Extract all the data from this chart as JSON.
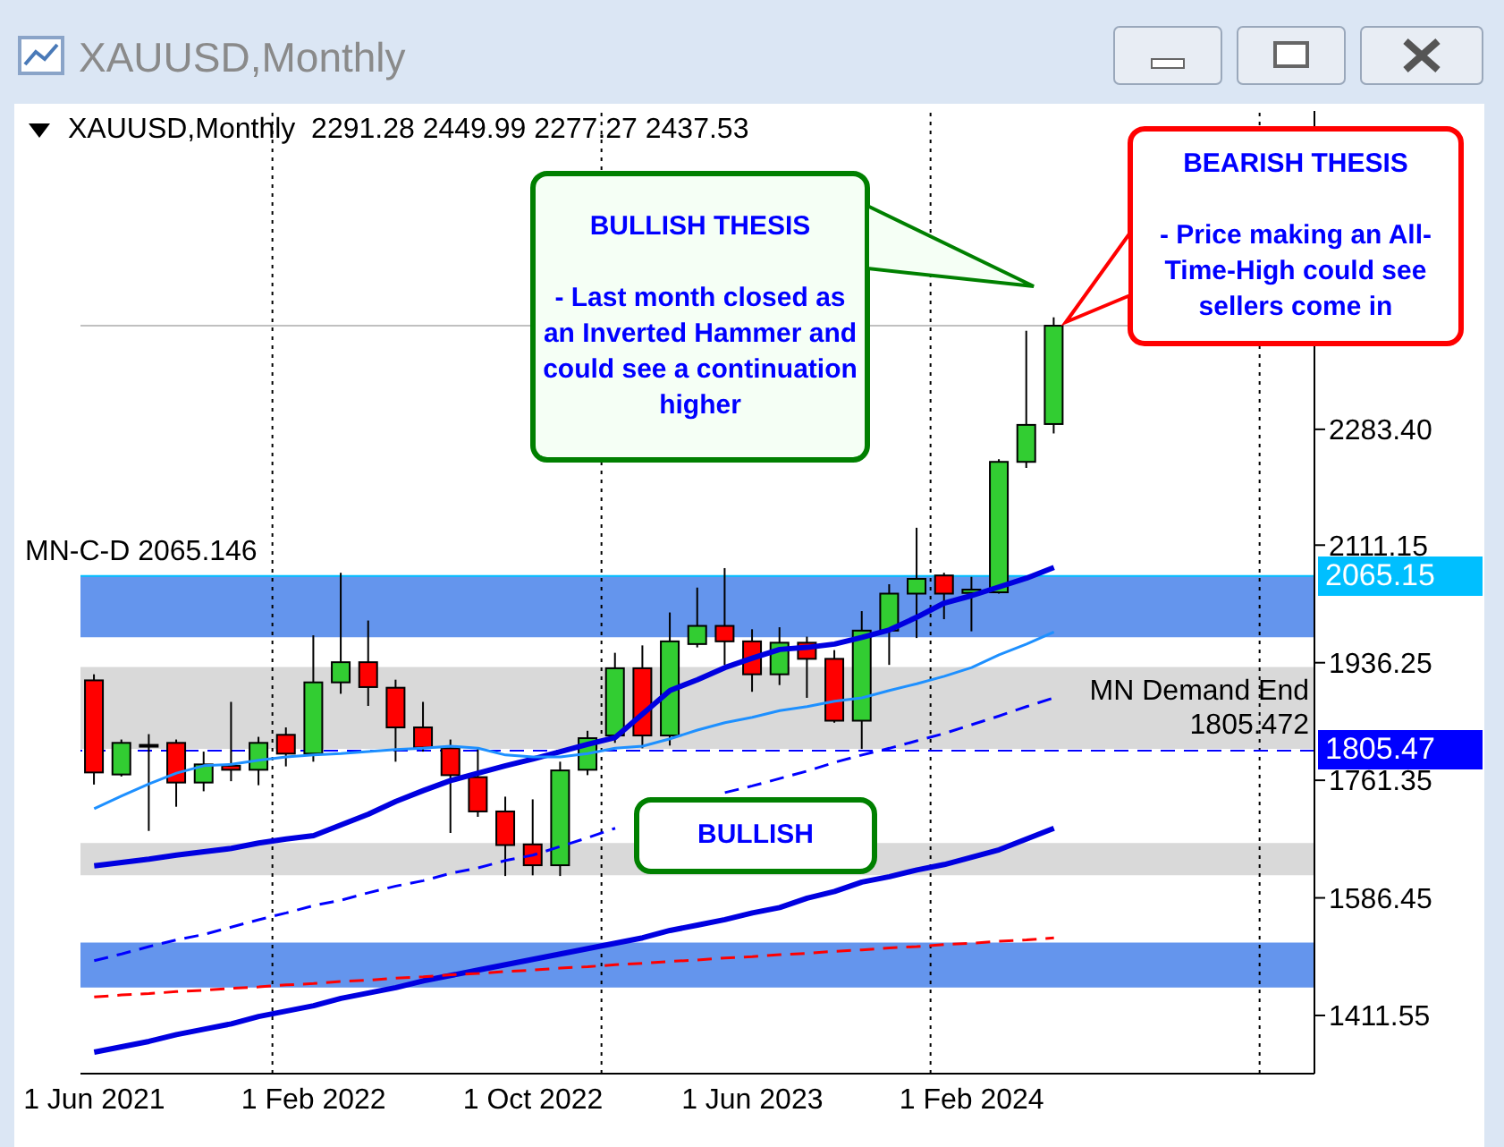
{
  "chart_data": {
    "type": "candlestick",
    "title": "XAUUSD,Monthly",
    "subtitle": "XAUUSD,Monthly  2291.28 2449.99 2277.27 2437.53",
    "categories": [
      "1 Jun 2021",
      null,
      null,
      null,
      null,
      null,
      null,
      null,
      "1 Feb 2022",
      null,
      null,
      null,
      null,
      null,
      null,
      null,
      "1 Oct 2022",
      null,
      null,
      null,
      null,
      null,
      null,
      null,
      "1 Jun 2023",
      null,
      null,
      null,
      null,
      null,
      null,
      null,
      "1 Feb 2024",
      null,
      null,
      null,
      null,
      null,
      null,
      null,
      null,
      null,
      null,
      null,
      null
    ],
    "ohlc": [
      [
        1910,
        1919,
        1755,
        1773
      ],
      [
        1770,
        1822,
        1767,
        1817
      ],
      [
        1813,
        1830,
        1686,
        1814
      ],
      [
        1817,
        1822,
        1722,
        1758
      ],
      [
        1758,
        1804,
        1745,
        1785
      ],
      [
        1783,
        1878,
        1760,
        1777
      ],
      [
        1777,
        1826,
        1754,
        1817
      ],
      [
        1829,
        1840,
        1782,
        1801
      ],
      [
        1801,
        1977,
        1789,
        1907
      ],
      [
        1907,
        2070,
        1890,
        1937
      ],
      [
        1937,
        1999,
        1872,
        1900
      ],
      [
        1899,
        1911,
        1789,
        1840
      ],
      [
        1840,
        1878,
        1804,
        1810
      ],
      [
        1809,
        1822,
        1683,
        1769
      ],
      [
        1766,
        1810,
        1707,
        1715
      ],
      [
        1715,
        1737,
        1619,
        1665
      ],
      [
        1666,
        1733,
        1620,
        1635
      ],
      [
        1635,
        1789,
        1619,
        1776
      ],
      [
        1777,
        1835,
        1769,
        1824
      ],
      [
        1828,
        1951,
        1817,
        1928
      ],
      [
        1928,
        1962,
        1809,
        1828
      ],
      [
        1828,
        2011,
        1813,
        1968
      ],
      [
        1964,
        2048,
        1959,
        1991
      ],
      [
        1991,
        2077,
        1933,
        1968
      ],
      [
        1968,
        1986,
        1893,
        1919
      ],
      [
        1919,
        1989,
        1903,
        1966
      ],
      [
        1966,
        1975,
        1884,
        1942
      ],
      [
        1942,
        1955,
        1847,
        1850
      ],
      [
        1850,
        2013,
        1808,
        1984
      ],
      [
        1984,
        2053,
        1933,
        2039
      ],
      [
        2039,
        2137,
        1973,
        2061
      ],
      [
        2066,
        2070,
        2001,
        2039
      ],
      [
        2040,
        2064,
        1983,
        2045
      ],
      [
        2041,
        2239,
        2039,
        2235
      ],
      [
        2235,
        2430,
        2226,
        2290
      ],
      [
        2291.28,
        2449.99,
        2277.27,
        2437.53
      ],
      null,
      null,
      null,
      null,
      null,
      null,
      null,
      null,
      null
    ],
    "colors": [
      "#ff0000",
      "#32cd32",
      "#32cd32",
      "#ff0000",
      "#32cd32",
      "#ff0000",
      "#32cd32",
      "#ff0000",
      "#32cd32",
      "#32cd32",
      "#ff0000",
      "#ff0000",
      "#ff0000",
      "#ff0000",
      "#ff0000",
      "#ff0000",
      "#ff0000",
      "#32cd32",
      "#32cd32",
      "#32cd32",
      "#ff0000",
      "#32cd32",
      "#32cd32",
      "#ff0000",
      "#ff0000",
      "#32cd32",
      "#ff0000",
      "#ff0000",
      "#32cd32",
      "#32cd32",
      "#32cd32",
      "#ff0000",
      "#32cd32",
      "#32cd32",
      "#32cd32",
      "#32cd32",
      null,
      null,
      null,
      null,
      null,
      null,
      null,
      null,
      null
    ],
    "series": [
      {
        "type": "line",
        "color": "#0000e0",
        "line_style": "solid",
        "values": [
          1634,
          1639,
          1644,
          1650,
          1655,
          1660,
          1668,
          1674,
          1679,
          1695,
          1711,
          1730,
          1746,
          1761,
          1772,
          1783,
          1793,
          1804,
          1815,
          1825,
          1860,
          1895,
          1911,
          1929,
          1943,
          1956,
          1959,
          1964,
          1974,
          1985,
          2004,
          2025,
          2036,
          2049,
          2062,
          2078,
          null,
          null,
          null,
          null,
          null,
          null,
          null,
          null,
          null
        ]
      },
      {
        "type": "line",
        "color": "#1e90ff",
        "line_style": "solid",
        "values": [
          1719,
          1738,
          1756,
          1772,
          1783,
          1785,
          1791,
          1796,
          1799,
          1801,
          1804,
          1807,
          1809,
          1812,
          1809,
          1799,
          1796,
          1796,
          1801,
          1809,
          1812,
          1823,
          1836,
          1847,
          1855,
          1865,
          1871,
          1879,
          1884,
          1895,
          1905,
          1916,
          1929,
          1948,
          1964,
          1982,
          null,
          null,
          null,
          null,
          null,
          null,
          null,
          null,
          null
        ]
      },
      {
        "type": "line",
        "color": "#0000ff",
        "line_style": "dashed",
        "values": [
          1493,
          1503,
          1514,
          1524,
          1532,
          1543,
          1554,
          1564,
          1575,
          1583,
          1594,
          1604,
          1612,
          1623,
          1631,
          1642,
          1650,
          1663,
          1676,
          1690,
          null,
          null,
          null,
          1743,
          1753,
          1764,
          1775,
          1788,
          1799,
          1809,
          1820,
          1831,
          1844,
          1857,
          1871,
          1884,
          null,
          null,
          null,
          null,
          null,
          null,
          null,
          null,
          null
        ]
      },
      {
        "type": "line",
        "color": "#0000e0",
        "line_style": "solid",
        "values": [
          1357,
          1365,
          1373,
          1383,
          1391,
          1399,
          1410,
          1418,
          1426,
          1437,
          1445,
          1453,
          1463,
          1471,
          1479,
          1487,
          1495,
          1503,
          1511,
          1519,
          1527,
          1538,
          1546,
          1554,
          1564,
          1572,
          1586,
          1596,
          1610,
          1618,
          1628,
          1636,
          1647,
          1658,
          1674,
          1690,
          null,
          null,
          null,
          null,
          null,
          null,
          null,
          null,
          null
        ]
      },
      {
        "type": "line",
        "color": "#ff0000",
        "line_style": "dashed",
        "values": [
          1439,
          1442,
          1444,
          1447,
          1449,
          1452,
          1454,
          1457,
          1459,
          1462,
          1464,
          1467,
          1469,
          1472,
          1474,
          1477,
          1479,
          1482,
          1484,
          1487,
          1489,
          1492,
          1494,
          1497,
          1499,
          1502,
          1504,
          1507,
          1509,
          1512,
          1514,
          1517,
          1519,
          1522,
          1524,
          1527,
          null,
          null,
          null,
          null,
          null,
          null,
          null,
          null,
          null
        ]
      }
    ],
    "ylim": [
      1325,
      2757
    ],
    "yticks": [
      {
        "value": 2283.4,
        "label": "2283.40"
      },
      {
        "value": 2111.15,
        "label": "2111.15"
      },
      {
        "value": 1936.25,
        "label": "1936.25"
      },
      {
        "value": 1761.35,
        "label": "1761.35"
      },
      {
        "value": 1586.45,
        "label": "1586.45"
      },
      {
        "value": 1411.55,
        "label": "1411.55"
      }
    ],
    "ref_lines": [
      {
        "axis": "y",
        "value": 2065.15,
        "label": "MN-C-D 2065.146",
        "color": "#00bfff",
        "line_style": "solid"
      },
      {
        "axis": "y",
        "value": 1805.47,
        "label": "MN Demand End 1805.472",
        "color": "#0000ff",
        "line_style": "dashed"
      },
      {
        "axis": "y",
        "value": 2437.53,
        "color": "#c0c0c0",
        "line_style": "solid"
      }
    ],
    "bands": [
      {
        "axis": "y",
        "from": 1974,
        "to": 2065,
        "color": "#6495ed"
      },
      {
        "axis": "y",
        "from": 1808,
        "to": 1930,
        "color": "#d9d9d9"
      },
      {
        "axis": "y",
        "from": 1620,
        "to": 1668,
        "color": "#d9d9d9"
      },
      {
        "axis": "y",
        "from": 1453,
        "to": 1520,
        "color": "#6495ed"
      }
    ],
    "annotations": [
      "BULLISH THESIS\n\n- Last month closed as an Inverted Hammer and could see a continuation higher",
      "BEARISH THESIS\n\n- Price making an All-Time-High could see sellers come in",
      "BULLISH",
      "2065.15",
      "1805.47"
    ],
    "legend": false,
    "grid": false
  }
}
